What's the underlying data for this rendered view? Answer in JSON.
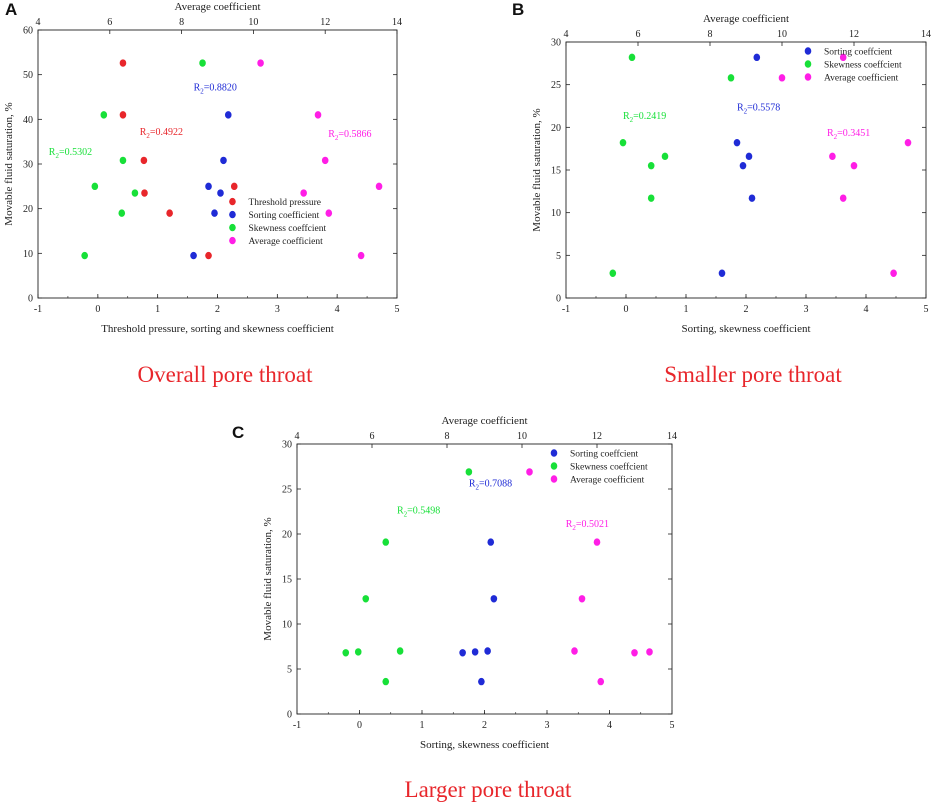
{
  "panels": [
    {
      "letter": "A",
      "caption": "Overall pore throat",
      "top_axis_label": "Average coefficient",
      "xlabel": "Threshold pressure, sorting and skewness coefficient",
      "ylabel": "Movable fluid saturation, %",
      "xlim": [
        -1,
        5
      ],
      "ylim": [
        0,
        60
      ],
      "top_lim": [
        4,
        14
      ],
      "xticks": [
        -1,
        0,
        1,
        2,
        3,
        4,
        5
      ],
      "yticks": [
        0,
        10,
        20,
        30,
        40,
        50,
        60
      ],
      "top_ticks": [
        4,
        6,
        8,
        10,
        12,
        14
      ],
      "series": [
        {
          "name": "Threshold pressure",
          "color": "#e8262b",
          "axis": "bottom",
          "x": [
            0.42,
            0.42,
            0.77,
            0.78,
            1.2,
            1.85,
            2.28
          ],
          "y": [
            52.6,
            41.0,
            30.8,
            23.5,
            19.0,
            9.5,
            25.0
          ]
        },
        {
          "name": "Sorting coefficient",
          "color": "#1f2bd6",
          "axis": "bottom",
          "x": [
            2.18,
            2.1,
            1.85,
            2.05,
            1.95,
            1.6
          ],
          "y": [
            41.0,
            30.8,
            25.0,
            23.5,
            19.0,
            9.5
          ]
        },
        {
          "name": "Skewness coefficient",
          "color": "#17e038",
          "axis": "bottom",
          "x": [
            1.75,
            0.1,
            0.42,
            -0.05,
            0.62,
            0.4,
            -0.22
          ],
          "y": [
            52.6,
            41.0,
            30.8,
            25.0,
            23.5,
            19.0,
            9.5
          ]
        },
        {
          "name": "Average coefficient",
          "color": "#ff1ee6",
          "axis": "top",
          "x": [
            10.2,
            11.8,
            12.0,
            11.4,
            13.5,
            12.1,
            13.0
          ],
          "y": [
            52.6,
            41.0,
            30.8,
            23.5,
            25.0,
            19.0,
            9.5
          ]
        }
      ],
      "legend": [
        "Threshold pressure",
        "Sorting coefficient",
        "Skewness coeffcient",
        "Average coefficient"
      ],
      "annotations": [
        {
          "text": "R2=0.4922",
          "color": "#e8262b",
          "x": 0.7,
          "y": 36.5
        },
        {
          "text": "R2=0.8820",
          "color": "#1f2bd6",
          "x": 1.6,
          "y": 46.5
        },
        {
          "text": "R2=0.5302",
          "color": "#17e038",
          "x": -0.82,
          "y": 32.0
        },
        {
          "text": "R2=0.5866",
          "color": "#ff1ee6",
          "x": 3.85,
          "y": 36.0
        }
      ]
    },
    {
      "letter": "B",
      "caption": "Smaller pore throat",
      "top_axis_label": "Average coefficient",
      "xlabel": "Sorting, skewness coefficient",
      "ylabel": "Movable fluid saturation, %",
      "xlim": [
        -1,
        5
      ],
      "ylim": [
        0,
        30
      ],
      "top_lim": [
        4,
        14
      ],
      "xticks": [
        -1,
        0,
        1,
        2,
        3,
        4,
        5
      ],
      "yticks": [
        0,
        5,
        10,
        15,
        20,
        25,
        30
      ],
      "top_ticks": [
        4,
        6,
        8,
        10,
        12,
        14
      ],
      "series": [
        {
          "name": "Sorting coefficient",
          "color": "#1f2bd6",
          "axis": "bottom",
          "x": [
            2.18,
            1.85,
            2.05,
            1.95,
            2.1,
            1.6
          ],
          "y": [
            28.2,
            18.2,
            16.6,
            15.5,
            11.7,
            2.9
          ]
        },
        {
          "name": "Skewness coefficient",
          "color": "#17e038",
          "axis": "bottom",
          "x": [
            0.1,
            1.75,
            -0.05,
            0.65,
            0.42,
            0.42,
            -0.22
          ],
          "y": [
            28.2,
            25.8,
            18.2,
            16.6,
            15.5,
            11.7,
            2.9
          ]
        },
        {
          "name": "Average coefficient",
          "color": "#ff1ee6",
          "axis": "top",
          "x": [
            10.0,
            11.7,
            13.5,
            11.4,
            12.0,
            11.7,
            13.1
          ],
          "y": [
            25.8,
            28.2,
            18.2,
            16.6,
            15.5,
            11.7,
            2.9
          ]
        }
      ],
      "legend": [
        "Sorting coeffcient",
        "Skewness coeffcient",
        "Average coefficient"
      ],
      "annotations": [
        {
          "text": "R2=0.2419",
          "color": "#17e038",
          "x": -0.05,
          "y": 21.0
        },
        {
          "text": "R2=0.5578",
          "color": "#1f2bd6",
          "x": 1.85,
          "y": 22.0
        },
        {
          "text": "R2=0.3451",
          "color": "#ff1ee6",
          "x": 3.35,
          "y": 19.0
        }
      ]
    },
    {
      "letter": "C",
      "caption": "Larger pore throat",
      "top_axis_label": "Average coefficient",
      "xlabel": "Sorting, skewness coefficient",
      "ylabel": "Movable fluid saturation, %",
      "xlim": [
        -1,
        5
      ],
      "ylim": [
        0,
        30
      ],
      "top_lim": [
        4,
        14
      ],
      "xticks": [
        -1,
        0,
        1,
        2,
        3,
        4,
        5
      ],
      "yticks": [
        0,
        5,
        10,
        15,
        20,
        25,
        30
      ],
      "top_ticks": [
        4,
        6,
        8,
        10,
        12,
        14
      ],
      "series": [
        {
          "name": "Sorting coefficient",
          "color": "#1f2bd6",
          "axis": "bottom",
          "x": [
            2.1,
            2.15,
            1.65,
            1.85,
            2.05,
            1.95
          ],
          "y": [
            19.1,
            12.8,
            6.8,
            6.9,
            7.0,
            3.6
          ]
        },
        {
          "name": "Skewness coefficient",
          "color": "#17e038",
          "axis": "bottom",
          "x": [
            1.75,
            0.42,
            0.1,
            -0.22,
            -0.02,
            0.65,
            0.42
          ],
          "y": [
            26.9,
            19.1,
            12.8,
            6.8,
            6.9,
            7.0,
            3.6
          ]
        },
        {
          "name": "Average coefficient",
          "color": "#ff1ee6",
          "axis": "top",
          "x": [
            10.2,
            12.0,
            11.6,
            11.4,
            13.0,
            13.4,
            12.1
          ],
          "y": [
            26.9,
            19.1,
            12.8,
            7.0,
            6.8,
            6.9,
            3.6
          ]
        }
      ],
      "legend": [
        "Sorting coeffcient",
        "Skewness coeffcient",
        "Average coefficient"
      ],
      "annotations": [
        {
          "text": "R2=0.7088",
          "color": "#1f2bd6",
          "x": 1.75,
          "y": 25.3
        },
        {
          "text": "R2=0.5498",
          "color": "#17e038",
          "x": 0.6,
          "y": 22.3
        },
        {
          "text": "R2=0.5021",
          "color": "#ff1ee6",
          "x": 3.3,
          "y": 20.8
        }
      ]
    }
  ]
}
